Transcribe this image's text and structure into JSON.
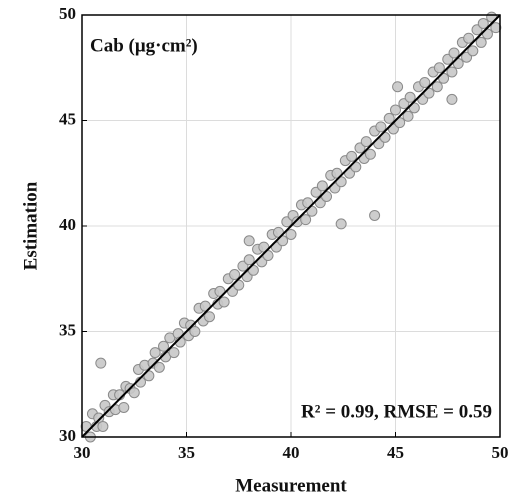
{
  "chart_data": {
    "type": "scatter",
    "title": "Cab (μg·cm²)",
    "annotation": "R² = 0.99, RMSE = 0.59",
    "x_label": "Measurement",
    "y_label": "Estimation",
    "xlim": [
      30,
      50
    ],
    "ylim": [
      30,
      50
    ],
    "xticks": [
      30,
      35,
      40,
      45,
      50
    ],
    "yticks": [
      30,
      35,
      40,
      45,
      50
    ],
    "grid": true,
    "series": [
      {
        "color": "#c8c8c8",
        "x": [
          30.2,
          30.4,
          30.5,
          30.7,
          30.8,
          31.0,
          31.1,
          31.3,
          31.5,
          31.6,
          31.8,
          32.0,
          32.1,
          32.3,
          32.5,
          32.7,
          32.8,
          33.0,
          33.2,
          33.4,
          33.5,
          33.7,
          33.9,
          34.0,
          34.2,
          34.4,
          34.6,
          34.7,
          34.9,
          35.1,
          35.2,
          35.4,
          35.6,
          35.8,
          35.9,
          36.1,
          36.3,
          36.5,
          36.6,
          36.8,
          37.0,
          37.2,
          37.3,
          37.5,
          37.7,
          37.9,
          38.0,
          38.2,
          38.4,
          38.6,
          38.7,
          38.9,
          39.1,
          39.3,
          39.4,
          39.6,
          39.8,
          40.0,
          40.1,
          40.3,
          40.5,
          40.7,
          40.8,
          41.0,
          41.2,
          41.4,
          41.5,
          41.7,
          41.9,
          42.1,
          42.2,
          42.4,
          42.6,
          42.8,
          42.9,
          43.1,
          43.3,
          43.5,
          43.6,
          43.8,
          44.0,
          44.2,
          44.3,
          44.5,
          44.7,
          44.9,
          45.0,
          45.2,
          45.4,
          45.6,
          45.7,
          45.9,
          46.1,
          46.3,
          46.4,
          46.6,
          46.8,
          47.0,
          47.1,
          47.3,
          47.5,
          47.7,
          47.8,
          48.0,
          48.2,
          48.4,
          48.5,
          48.7,
          48.9,
          49.1,
          49.2,
          49.4,
          49.6,
          49.8,
          30.9,
          44.0,
          42.4,
          38.0,
          47.7,
          45.1
        ],
        "values": [
          30.5,
          30.0,
          31.1,
          30.5,
          30.9,
          30.5,
          31.5,
          31.2,
          32.0,
          31.3,
          32.0,
          31.4,
          32.4,
          32.3,
          32.1,
          33.2,
          32.6,
          33.4,
          32.9,
          33.5,
          34.0,
          33.3,
          34.3,
          33.8,
          34.7,
          34.0,
          34.9,
          34.5,
          35.4,
          34.8,
          35.3,
          35.0,
          36.1,
          35.5,
          36.2,
          35.7,
          36.8,
          36.3,
          36.9,
          36.4,
          37.5,
          36.9,
          37.7,
          37.2,
          38.1,
          37.6,
          38.4,
          37.9,
          38.9,
          38.3,
          39.0,
          38.6,
          39.6,
          39.0,
          39.7,
          39.3,
          40.2,
          39.6,
          40.5,
          40.2,
          41.0,
          40.3,
          41.1,
          40.7,
          41.6,
          41.1,
          41.9,
          41.4,
          42.4,
          41.8,
          42.5,
          42.1,
          43.1,
          42.5,
          43.3,
          42.8,
          43.7,
          43.2,
          44.0,
          43.4,
          44.5,
          43.9,
          44.7,
          44.2,
          45.1,
          44.6,
          45.5,
          44.9,
          45.8,
          45.2,
          46.1,
          45.6,
          46.6,
          46.0,
          46.8,
          46.3,
          47.3,
          46.6,
          47.5,
          47.0,
          47.9,
          47.3,
          48.2,
          47.7,
          48.7,
          48.0,
          48.9,
          48.3,
          49.3,
          48.7,
          49.6,
          49.1,
          49.9,
          49.4,
          33.5,
          40.5,
          40.1,
          39.3,
          46.0,
          46.6
        ]
      }
    ]
  }
}
